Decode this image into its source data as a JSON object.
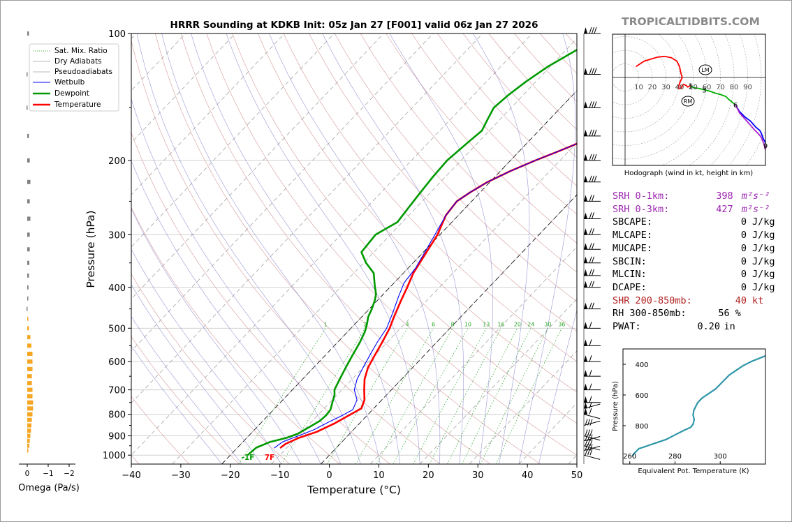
{
  "title": "HRRR Sounding at KDKB Init: 05z Jan 27 [F001] valid 06z Jan 27 2026",
  "brand": "TROPICALTIDBITS.COM",
  "chart_data": [
    {
      "type": "line",
      "name": "skew-t",
      "xlabel": "Temperature (°C)",
      "ylabel": "Pressure (hPa)",
      "xlim": [
        -40,
        50
      ],
      "ylim": [
        1050,
        100
      ],
      "y_scale": "log",
      "x_ticks": [
        -40,
        -30,
        -20,
        -10,
        0,
        10,
        20,
        30,
        40,
        50
      ],
      "y_ticks": [
        100,
        200,
        300,
        400,
        500,
        600,
        700,
        800,
        900,
        1000
      ],
      "legend_position": "top-left",
      "legend": [
        "Sat. Mix. Ratio",
        "Dry Adiabats",
        "Pseudoadiabats",
        "Wetbulb",
        "Dewpoint",
        "Temperature"
      ],
      "mixing_ratio_labels": [
        "1",
        "2",
        "4",
        "6",
        "8",
        "10",
        "13",
        "16",
        "20",
        "24",
        "30",
        "36"
      ],
      "surface_labels": {
        "dewpoint": "-1F",
        "temperature": "7F"
      },
      "series": [
        {
          "name": "Temperature",
          "color": "#ff0000",
          "points": [
            [
              -11.3,
              962
            ],
            [
              -11,
              940
            ],
            [
              -9.5,
              910
            ],
            [
              -7,
              880
            ],
            [
              -5,
              840
            ],
            [
              -3.5,
              800
            ],
            [
              -2.5,
              775
            ],
            [
              -3.5,
              740
            ],
            [
              -5.5,
              700
            ],
            [
              -7.5,
              660
            ],
            [
              -9,
              620
            ],
            [
              -10,
              580
            ],
            [
              -11,
              540
            ],
            [
              -12.2,
              500
            ],
            [
              -13.5,
              470
            ],
            [
              -15.2,
              430
            ],
            [
              -16.5,
              400
            ],
            [
              -18,
              370
            ],
            [
              -19,
              340
            ],
            [
              -20.5,
              300
            ],
            [
              -22.5,
              270
            ],
            [
              -23,
              250
            ],
            [
              -22,
              238
            ],
            [
              -20.5,
              225
            ],
            [
              -18,
              212
            ],
            [
              -15,
              200
            ],
            [
              -12,
              190
            ],
            [
              -9,
              180
            ],
            [
              -6,
              170
            ],
            [
              -4.5,
              160
            ],
            [
              -3,
              150
            ],
            [
              -2.5,
              140
            ],
            [
              -1,
              130
            ],
            [
              0.5,
              120
            ],
            [
              2,
              110
            ],
            [
              3,
              105
            ],
            [
              4,
              100
            ]
          ]
        },
        {
          "name": "Wetbulb",
          "color": "#0000ff",
          "points": [
            [
              -12.5,
              962
            ],
            [
              -12,
              930
            ],
            [
              -10,
              900
            ],
            [
              -8,
              870
            ],
            [
              -6.5,
              835
            ],
            [
              -5,
              805
            ],
            [
              -4,
              780
            ],
            [
              -5,
              740
            ],
            [
              -7.5,
              700
            ],
            [
              -9,
              660
            ],
            [
              -10,
              620
            ],
            [
              -11,
              580
            ],
            [
              -12,
              540
            ],
            [
              -12.8,
              500
            ],
            [
              -14.5,
              460
            ],
            [
              -16.5,
              420
            ],
            [
              -18,
              390
            ],
            [
              -18.5,
              360
            ],
            [
              -19.3,
              340
            ],
            [
              -21,
              300
            ],
            [
              -22.5,
              270
            ],
            [
              -23,
              250
            ],
            [
              -22,
              238
            ],
            [
              -20.5,
              225
            ],
            [
              -18,
              212
            ],
            [
              -15,
              200
            ],
            [
              -12,
              190
            ],
            [
              -9,
              180
            ],
            [
              -6,
              170
            ],
            [
              -5,
              160
            ],
            [
              -3.5,
              150
            ],
            [
              -2.5,
              140
            ],
            [
              -1.5,
              130
            ],
            [
              0,
              120
            ],
            [
              1.5,
              110
            ],
            [
              2.5,
              105
            ],
            [
              3.5,
              100
            ]
          ]
        },
        {
          "name": "Dewpoint",
          "color": "#009900",
          "points": [
            [
              -16.5,
              1000
            ],
            [
              -16.2,
              960
            ],
            [
              -14.5,
              930
            ],
            [
              -12,
              910
            ],
            [
              -10.5,
              890
            ],
            [
              -9.5,
              860
            ],
            [
              -8.5,
              830
            ],
            [
              -8.3,
              805
            ],
            [
              -8.5,
              780
            ],
            [
              -9.5,
              750
            ],
            [
              -10.5,
              720
            ],
            [
              -11.5,
              700
            ],
            [
              -12.5,
              660
            ],
            [
              -13.5,
              620
            ],
            [
              -14.5,
              580
            ],
            [
              -15.5,
              540
            ],
            [
              -16.5,
              510
            ],
            [
              -17.5,
              490
            ],
            [
              -18.7,
              470
            ],
            [
              -19.5,
              450
            ],
            [
              -20.5,
              430
            ],
            [
              -21.5,
              415
            ],
            [
              -23.5,
              395
            ],
            [
              -26,
              370
            ],
            [
              -29.5,
              350
            ],
            [
              -32.5,
              330
            ],
            [
              -33,
              300
            ],
            [
              -31,
              280
            ],
            [
              -31.5,
              260
            ],
            [
              -32,
              240
            ],
            [
              -32.5,
              220
            ],
            [
              -32.8,
              200
            ],
            [
              -32,
              180
            ],
            [
              -31.5,
              170
            ],
            [
              -32.5,
              160
            ],
            [
              -33.5,
              150
            ],
            [
              -33,
              140
            ],
            [
              -32,
              130
            ],
            [
              -30.5,
              120
            ],
            [
              -28,
              110
            ],
            [
              -25.5,
              100
            ]
          ]
        }
      ]
    },
    {
      "type": "line",
      "name": "hodograph",
      "xlabel": "Hodograph (wind in kt, height in km)",
      "ring_labels": [
        "10",
        "20",
        "30",
        "40",
        "20",
        "60",
        "70",
        "80",
        "90"
      ],
      "height_labels": [
        "1",
        "3",
        "6",
        "9"
      ],
      "markers": [
        "LM",
        "RM"
      ],
      "segments": [
        {
          "color": "#ff0000",
          "points": [
            [
              -40,
              8
            ],
            [
              -34,
              12
            ],
            [
              -24,
              15
            ],
            [
              -19,
              15.5
            ],
            [
              -14,
              14.5
            ],
            [
              -10,
              12
            ],
            [
              -8,
              8
            ],
            [
              -7,
              3
            ],
            [
              -6,
              0
            ],
            [
              -7.5,
              -3
            ],
            [
              -8.5,
              -6
            ],
            [
              -9,
              -8
            ],
            [
              -7,
              -8
            ],
            [
              -6,
              -6
            ],
            [
              -5,
              -5
            ],
            [
              -3,
              -6
            ],
            [
              -2,
              -7
            ],
            [
              0,
              -6
            ]
          ]
        },
        {
          "color": "#00aa00",
          "points": [
            [
              0,
              -6
            ],
            [
              2,
              -7.5
            ],
            [
              6,
              -8
            ],
            [
              10,
              -9
            ],
            [
              14,
              -10
            ],
            [
              18,
              -11.5
            ],
            [
              22,
              -12.5
            ],
            [
              26,
              -14
            ],
            [
              28,
              -16
            ],
            [
              31,
              -18.5
            ],
            [
              33,
              -20
            ]
          ]
        },
        {
          "color": "#0000ff",
          "points": [
            [
              33,
              -20
            ],
            [
              36,
              -25
            ],
            [
              40,
              -29
            ],
            [
              44,
              -32
            ],
            [
              48,
              -36.5
            ],
            [
              51,
              -39
            ],
            [
              52,
              -41
            ],
            [
              53.5,
              -45
            ],
            [
              54.5,
              -47
            ],
            [
              56,
              -50
            ]
          ]
        },
        {
          "color": "#aa22cc",
          "points": [
            [
              33,
              -20
            ],
            [
              36,
              -26
            ],
            [
              40,
              -30.5
            ],
            [
              44,
              -35
            ],
            [
              47,
              -38.5
            ],
            [
              50,
              -41.5
            ],
            [
              52,
              -44
            ],
            [
              54,
              -49
            ],
            [
              55,
              -53
            ]
          ]
        }
      ]
    },
    {
      "type": "line",
      "name": "equivalent-potential-temperature",
      "xlabel": "Equivalent Pot. Temperature (K)",
      "ylabel": "Pressure (hPa)",
      "x_ticks": [
        260,
        280,
        300
      ],
      "y_ticks": [
        400,
        600,
        800
      ],
      "xlim": [
        257,
        320
      ],
      "ylim": [
        1050,
        300
      ],
      "series": [
        {
          "name": "theta-e",
          "color": "#2e96a8",
          "points": [
            [
              261,
              1000
            ],
            [
              262,
              980
            ],
            [
              264,
              950
            ],
            [
              266,
              940
            ],
            [
              269,
              925
            ],
            [
              272,
              910
            ],
            [
              276,
              890
            ],
            [
              280,
              860
            ],
            [
              284,
              830
            ],
            [
              287,
              810
            ],
            [
              288,
              790
            ],
            [
              288.5,
              760
            ],
            [
              288,
              730
            ],
            [
              288.3,
              700
            ],
            [
              289,
              680
            ],
            [
              290,
              650
            ],
            [
              292,
              620
            ],
            [
              295,
              590
            ],
            [
              298,
              560
            ],
            [
              300,
              530
            ],
            [
              302,
              500
            ],
            [
              304,
              470
            ],
            [
              307,
              440
            ],
            [
              310,
              410
            ],
            [
              314,
              380
            ],
            [
              317.5,
              360
            ],
            [
              320,
              345
            ]
          ]
        }
      ]
    },
    {
      "type": "bar",
      "name": "omega",
      "xlabel": "Omega (Pa/s)",
      "x_ticks": [
        "0",
        "−1",
        "−2"
      ],
      "levels": [
        100,
        125,
        150,
        175,
        200,
        225,
        250,
        275,
        300,
        325,
        350,
        375,
        400,
        425,
        450,
        475,
        500,
        525,
        550,
        575,
        600,
        625,
        650,
        675,
        700,
        725,
        750,
        775,
        800,
        825,
        850,
        875,
        900,
        925,
        950,
        975
      ],
      "values": [
        -0.08,
        0.0,
        0.0,
        -0.08,
        -0.12,
        -0.15,
        -0.12,
        -0.15,
        -0.12,
        -0.12,
        -0.1,
        -0.08,
        -0.06,
        -0.03,
        0.0,
        -0.03,
        -0.08,
        -0.15,
        -0.2,
        -0.25,
        -0.25,
        -0.25,
        -0.22,
        -0.22,
        -0.25,
        -0.25,
        -0.28,
        -0.28,
        -0.25,
        -0.22,
        -0.2,
        -0.18,
        -0.15,
        -0.12,
        -0.1,
        -0.05
      ]
    }
  ],
  "stats": [
    {
      "label": "SRH 0-1km:",
      "value": "398",
      "unit": "m²s⁻²",
      "color": "#9c27b0"
    },
    {
      "label": "SRH 0-3km:",
      "value": "427",
      "unit": "m²s⁻²",
      "color": "#9c27b0"
    },
    {
      "label": "SBCAPE:",
      "value": "0",
      "unit": "J/kg",
      "color": "#000000"
    },
    {
      "label": "MLCAPE:",
      "value": "0",
      "unit": "J/kg",
      "color": "#000000"
    },
    {
      "label": "MUCAPE:",
      "value": "0",
      "unit": "J/kg",
      "color": "#000000"
    },
    {
      "label": "SBCIN:",
      "value": "0",
      "unit": "J/kg",
      "color": "#000000"
    },
    {
      "label": "MLCIN:",
      "value": "0",
      "unit": "J/kg",
      "color": "#000000"
    },
    {
      "label": "DCAPE:",
      "value": "0",
      "unit": "J/kg",
      "color": "#000000"
    },
    {
      "label": "SHR 200-850mb:",
      "value": "40",
      "unit": "kt",
      "color": "#b22222"
    },
    {
      "label": "RH 300-850mb:",
      "value": "56",
      "unit": "%",
      "color": "#000000"
    },
    {
      "label": "PWAT:",
      "value": "0.20",
      "unit": "in",
      "color": "#000000"
    }
  ],
  "colors": {
    "temperature": "#ff0000",
    "dewpoint": "#009900",
    "wetbulb": "#0000ff",
    "dry_adiabat": "#cc8080",
    "pseudoadiabat": "#8080cc",
    "mixing_ratio": "#33aa33",
    "omega_bar": "#f5a623",
    "theta_e": "#2e96a8",
    "srh": "#9c27b0",
    "shear": "#b22222"
  }
}
